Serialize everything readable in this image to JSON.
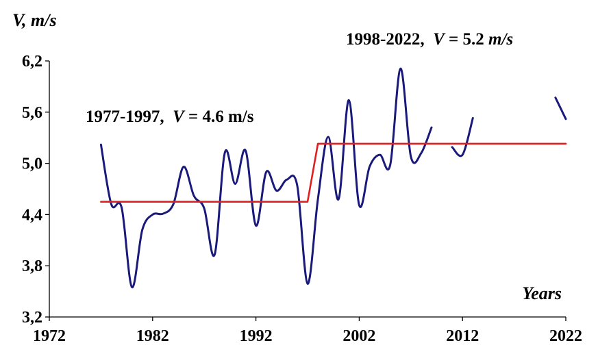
{
  "chart_data": {
    "type": "line",
    "title": "",
    "ylabel": "V,  m/s",
    "xlabel": "Years",
    "xlim": [
      1972,
      2022
    ],
    "ylim": [
      3.2,
      6.2
    ],
    "xticks": [
      {
        "value": 1972,
        "label": "1972"
      },
      {
        "value": 1982,
        "label": "1982"
      },
      {
        "value": 1992,
        "label": "1992"
      },
      {
        "value": 2002,
        "label": "2002"
      },
      {
        "value": 2012,
        "label": "2012"
      },
      {
        "value": 2022,
        "label": "2022"
      }
    ],
    "yticks": [
      {
        "value": 3.2,
        "label": "3,2"
      },
      {
        "value": 3.8,
        "label": "3,8"
      },
      {
        "value": 4.4,
        "label": "4,4"
      },
      {
        "value": 5.0,
        "label": "5,0"
      },
      {
        "value": 5.6,
        "label": "5,6"
      },
      {
        "value": 6.2,
        "label": "6,2"
      }
    ],
    "grid": false,
    "series": [
      {
        "color": "#1a1a7a",
        "segments": [
          [
            [
              1977,
              5.22
            ],
            [
              1978,
              4.52
            ],
            [
              1979,
              4.48
            ],
            [
              1980,
              3.55
            ],
            [
              1981,
              4.22
            ],
            [
              1982,
              4.4
            ],
            [
              1983,
              4.41
            ],
            [
              1984,
              4.52
            ],
            [
              1985,
              4.96
            ],
            [
              1986,
              4.62
            ],
            [
              1987,
              4.47
            ],
            [
              1988,
              3.93
            ],
            [
              1989,
              5.13
            ],
            [
              1990,
              4.76
            ],
            [
              1991,
              5.15
            ],
            [
              1992,
              4.27
            ],
            [
              1993,
              4.9
            ],
            [
              1994,
              4.68
            ],
            [
              1995,
              4.81
            ],
            [
              1996,
              4.74
            ],
            [
              1997,
              3.59
            ],
            [
              1998,
              4.58
            ],
            [
              1999,
              5.31
            ],
            [
              2000,
              4.58
            ],
            [
              2001,
              5.74
            ],
            [
              2002,
              4.51
            ],
            [
              2003,
              4.96
            ],
            [
              2004,
              5.1
            ],
            [
              2005,
              4.98
            ],
            [
              2006,
              6.11
            ],
            [
              2007,
              5.08
            ],
            [
              2008,
              5.12
            ],
            [
              2009,
              5.42
            ]
          ],
          [
            [
              2011,
              5.19
            ],
            [
              2012,
              5.1
            ],
            [
              2013,
              5.53
            ]
          ],
          [
            [
              2021,
              5.77
            ],
            [
              2022,
              5.52
            ]
          ]
        ]
      },
      {
        "color": "#e02020",
        "segments": [
          [
            [
              1977,
              4.55
            ],
            [
              1997,
              4.55
            ],
            [
              1998,
              5.23
            ],
            [
              2022,
              5.23
            ]
          ]
        ]
      }
    ],
    "annotations": [
      {
        "id": "early",
        "year_range": "1977-1997",
        "var": "V",
        "eq": " = 4.6 m/s"
      },
      {
        "id": "late",
        "year_range": "1998-2022",
        "var": "V",
        "eq_prefix": " = 5.2 ",
        "unit": "m/s"
      }
    ]
  }
}
